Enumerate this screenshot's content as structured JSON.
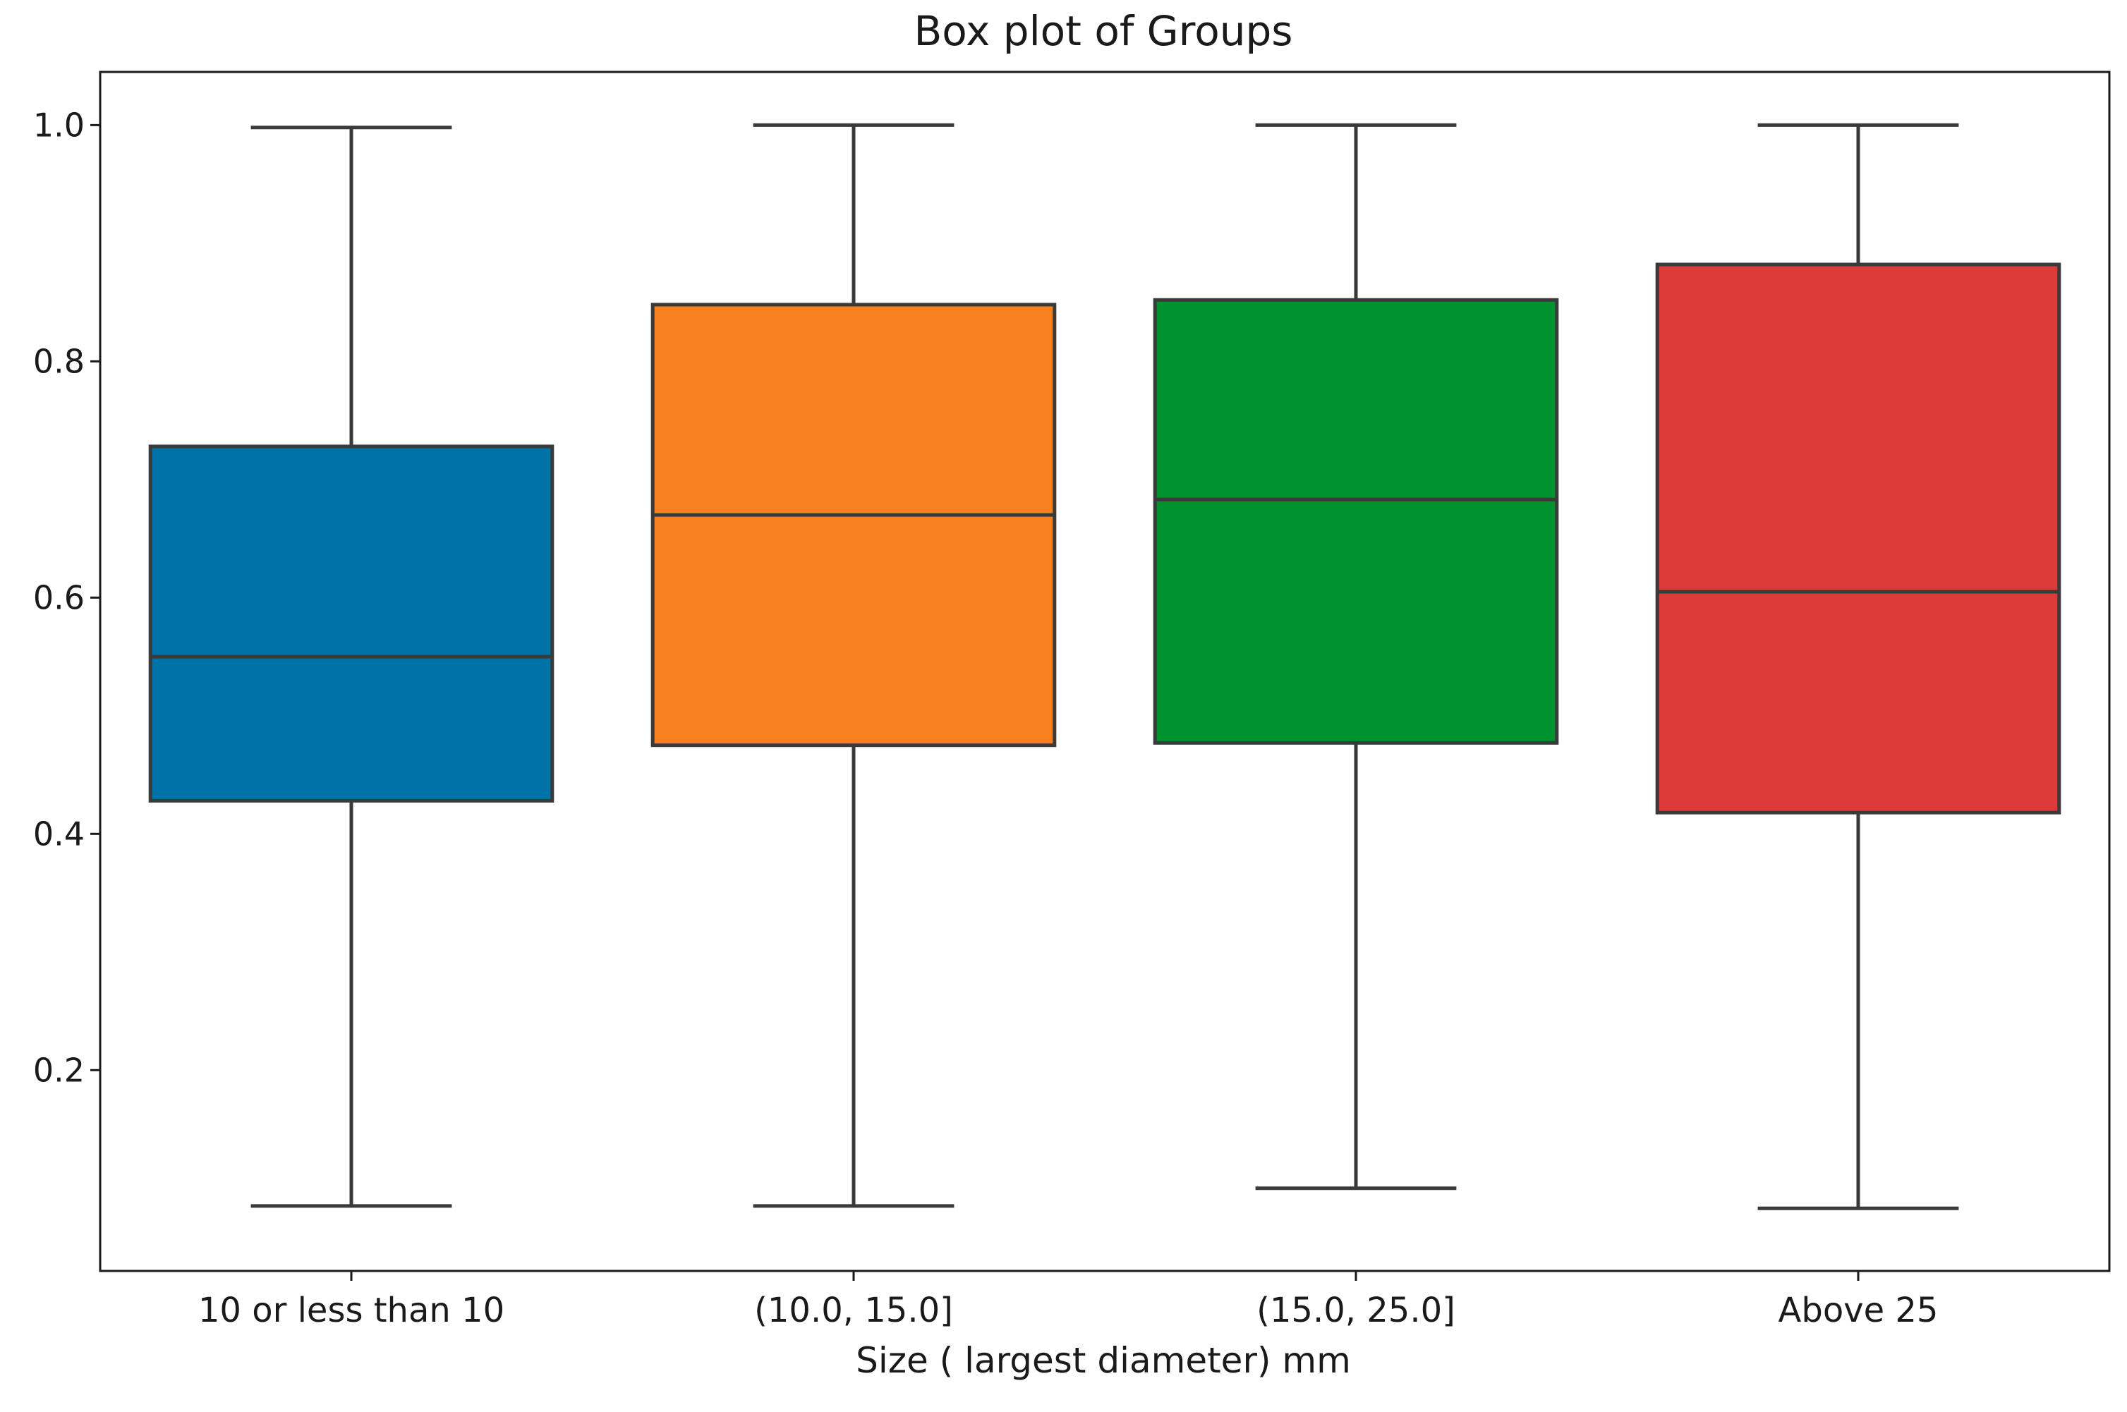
{
  "chart_data": {
    "type": "box",
    "title": "Box plot of Groups",
    "xlabel": "Size ( largest diameter) mm",
    "ylabel": "",
    "ylim": [
      0.03,
      1.045
    ],
    "yticks": [
      0.2,
      0.4,
      0.6,
      0.8,
      1.0
    ],
    "ytick_labels": [
      "0.2",
      "0.4",
      "0.6",
      "0.8",
      "1.0"
    ],
    "grid": false,
    "categories": [
      "10 or less than 10",
      "(10.0, 15.0]",
      "(15.0, 25.0]",
      "Above 25"
    ],
    "boxes": [
      {
        "category": "10 or less than 10",
        "whisker_low": 0.085,
        "q1": 0.428,
        "median": 0.55,
        "q3": 0.728,
        "whisker_high": 0.998,
        "color": "#0072a8"
      },
      {
        "category": "(10.0, 15.0]",
        "whisker_low": 0.085,
        "q1": 0.475,
        "median": 0.67,
        "q3": 0.848,
        "whisker_high": 1.0,
        "color": "#f7801f"
      },
      {
        "category": "(15.0, 25.0]",
        "whisker_low": 0.1,
        "q1": 0.477,
        "median": 0.683,
        "q3": 0.852,
        "whisker_high": 1.0,
        "color": "#00922e"
      },
      {
        "category": "Above 25",
        "whisker_low": 0.083,
        "q1": 0.418,
        "median": 0.605,
        "q3": 0.882,
        "whisker_high": 1.0,
        "color": "#dc3b3a"
      }
    ]
  }
}
